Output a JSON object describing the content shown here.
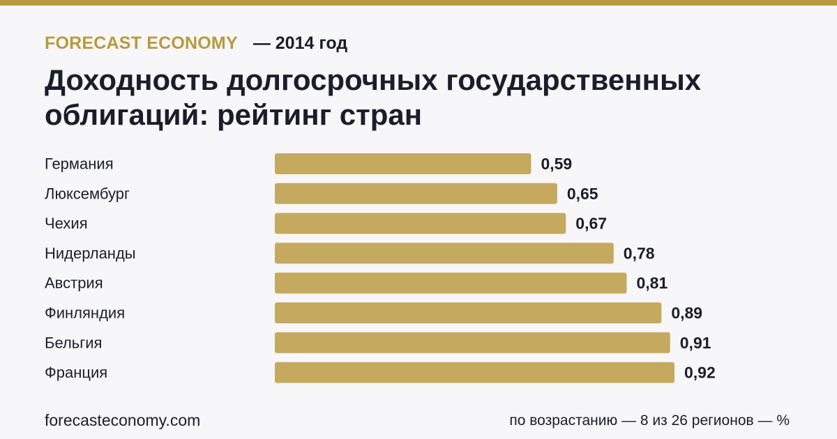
{
  "header": {
    "brand": "FORECAST ECONOMY",
    "year_label": "— 2014 год"
  },
  "title": "Доходность долгосрочных государственных облигаций: рейтинг стран",
  "footer": {
    "site": "forecasteconomy.com",
    "note": "по возрастанию — 8 из 26 регионов — %"
  },
  "colors": {
    "accent": "#b89a3e",
    "bar": "#c5a95e",
    "text": "#1c1c2b",
    "background": "#f7f7fa"
  },
  "chart_data": {
    "type": "bar",
    "orientation": "horizontal",
    "categories": [
      "Германия",
      "Люксембург",
      "Чехия",
      "Нидерланды",
      "Австрия",
      "Финляндия",
      "Бельгия",
      "Франция"
    ],
    "values": [
      0.59,
      0.65,
      0.67,
      0.78,
      0.81,
      0.89,
      0.91,
      0.92
    ],
    "value_labels": [
      "0,59",
      "0,65",
      "0,67",
      "0,78",
      "0,81",
      "0,89",
      "0,91",
      "0,92"
    ],
    "title": "Доходность долгосрочных государственных облигаций: рейтинг стран",
    "xlabel": "",
    "ylabel": "",
    "xlim": [
      0,
      0.92
    ],
    "grid": false,
    "legend": "none"
  }
}
